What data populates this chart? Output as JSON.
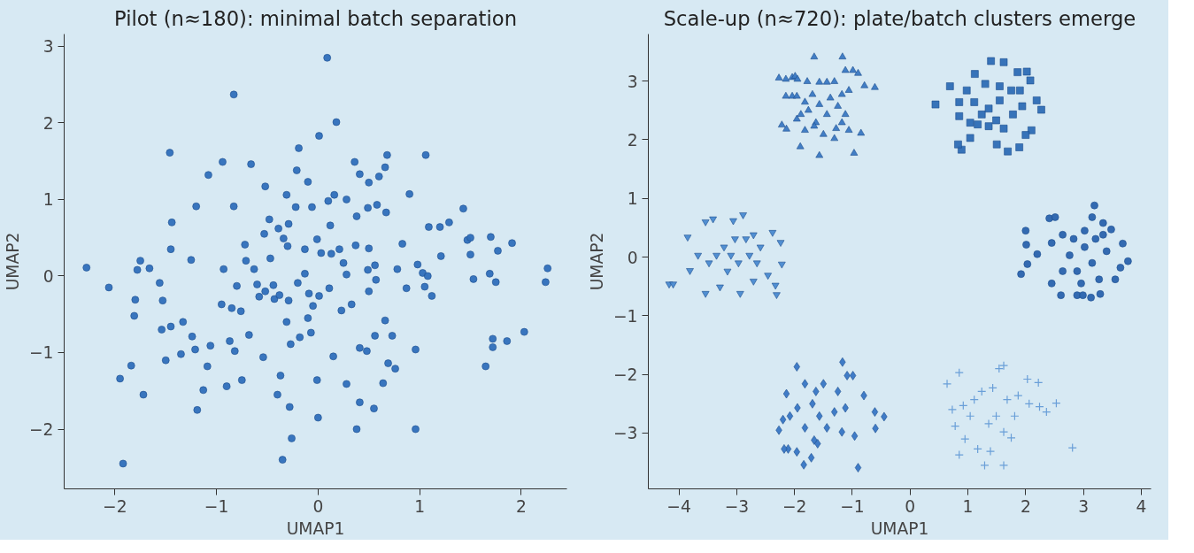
{
  "chart_data": [
    {
      "type": "scatter",
      "title": "Pilot (n≈180): minimal batch separation",
      "xlabel": "UMAP1",
      "ylabel": "UMAP2",
      "xlim": [
        -2.5,
        2.45
      ],
      "ylim": [
        -2.78,
        3.16
      ],
      "xticks": [
        -2,
        -1,
        0,
        1,
        2
      ],
      "yticks": [
        -2,
        -1,
        0,
        1,
        2,
        3
      ],
      "grid": false,
      "marker": "circle",
      "series": [
        {
          "color": "#2f6fba",
          "x": [
            -2.28,
            -2.06,
            -1.95,
            -1.92,
            -1.84,
            -1.81,
            -1.8,
            -1.78,
            -1.75,
            -1.72,
            -1.66,
            -1.56,
            -1.54,
            -1.53,
            -1.5,
            -1.46,
            -1.45,
            -1.45,
            -1.44,
            -1.35,
            -1.33,
            -1.25,
            -1.24,
            -1.21,
            -1.2,
            -1.19,
            -1.13,
            -1.09,
            -1.08,
            -1.06,
            -0.95,
            -0.94,
            -0.93,
            -0.9,
            -0.87,
            -0.85,
            -0.83,
            -0.83,
            -0.82,
            -0.8,
            -0.76,
            -0.75,
            -0.72,
            -0.71,
            -0.68,
            -0.66,
            -0.63,
            -0.6,
            -0.58,
            -0.54,
            -0.53,
            -0.52,
            -0.52,
            -0.48,
            -0.47,
            -0.44,
            -0.43,
            -0.4,
            -0.39,
            -0.38,
            -0.37,
            -0.35,
            -0.34,
            -0.31,
            -0.31,
            -0.3,
            -0.29,
            -0.29,
            -0.28,
            -0.27,
            -0.26,
            -0.22,
            -0.21,
            -0.2,
            -0.19,
            -0.18,
            -0.13,
            -0.13,
            -0.1,
            -0.1,
            -0.09,
            -0.07,
            -0.06,
            -0.05,
            -0.01,
            -0.01,
            0.0,
            0.01,
            0.01,
            0.03,
            0.09,
            0.1,
            0.11,
            0.12,
            0.13,
            0.15,
            0.16,
            0.18,
            0.21,
            0.23,
            0.25,
            0.28,
            0.28,
            0.28,
            0.33,
            0.36,
            0.37,
            0.38,
            0.38,
            0.41,
            0.41,
            0.41,
            0.48,
            0.49,
            0.49,
            0.5,
            0.5,
            0.5,
            0.55,
            0.56,
            0.56,
            0.57,
            0.58,
            0.6,
            0.64,
            0.66,
            0.66,
            0.67,
            0.68,
            0.69,
            0.73,
            0.76,
            0.78,
            0.83,
            0.87,
            0.9,
            0.96,
            0.96,
            0.98,
            1.03,
            1.05,
            1.06,
            1.08,
            1.09,
            1.12,
            1.2,
            1.21,
            1.29,
            1.43,
            1.47,
            1.5,
            1.5,
            1.53,
            1.65,
            1.69,
            1.7,
            1.72,
            1.72,
            1.75,
            1.77,
            1.86,
            1.91,
            2.03,
            2.24,
            2.26
          ],
          "values": [
            0.11,
            -0.15,
            -1.34,
            -2.45,
            -1.17,
            -0.52,
            -0.31,
            0.08,
            0.2,
            -1.55,
            0.1,
            -0.09,
            -0.7,
            -0.32,
            -1.1,
            1.61,
            0.35,
            -0.66,
            0.7,
            -1.02,
            -0.6,
            0.21,
            -0.79,
            -0.96,
            0.91,
            -1.75,
            -1.49,
            -1.18,
            1.32,
            -0.91,
            -0.37,
            1.49,
            0.09,
            -1.44,
            -0.85,
            -0.42,
            0.91,
            2.37,
            -0.98,
            -0.13,
            -0.46,
            -1.36,
            0.41,
            0.2,
            -0.77,
            1.46,
            0.09,
            -0.11,
            -0.27,
            -1.06,
            0.55,
            1.17,
            -0.2,
            0.74,
            0.23,
            -0.12,
            -0.3,
            -1.55,
            0.62,
            -0.25,
            -1.3,
            -2.4,
            0.49,
            1.06,
            -0.6,
            0.39,
            -0.32,
            0.68,
            -1.71,
            -0.89,
            -2.12,
            0.9,
            1.38,
            -0.09,
            1.67,
            -0.8,
            0.35,
            0.03,
            -0.55,
            1.23,
            -0.23,
            -0.74,
            0.9,
            -0.39,
            0.48,
            -1.36,
            -1.85,
            -0.26,
            1.83,
            0.3,
            2.85,
            0.98,
            -0.16,
            0.66,
            0.29,
            -1.05,
            1.06,
            2.01,
            0.35,
            -0.45,
            0.17,
            1.0,
            0.02,
            -1.41,
            -0.37,
            1.49,
            0.4,
            -2.0,
            0.78,
            1.33,
            -1.65,
            -0.94,
            -0.98,
            0.08,
            0.89,
            0.36,
            1.22,
            -0.2,
            -1.73,
            0.14,
            -0.78,
            -0.05,
            0.93,
            1.3,
            -1.4,
            1.42,
            -0.58,
            0.83,
            1.58,
            -1.14,
            -0.78,
            -1.21,
            0.09,
            0.42,
            -0.16,
            1.07,
            -0.96,
            -2.0,
            0.15,
            0.04,
            -0.14,
            1.58,
            0.0,
            0.64,
            -0.26,
            0.64,
            0.26,
            0.7,
            0.88,
            0.47,
            0.28,
            0.5,
            -0.04,
            -1.18,
            0.03,
            0.51,
            -0.82,
            -0.93,
            -0.08,
            0.33,
            -0.85,
            0.43,
            -0.73,
            -0.08,
            0.1
          ]
        }
      ]
    },
    {
      "type": "scatter",
      "title": "Scale-up (n≈720): plate/batch clusters emerge",
      "xlabel": "UMAP1",
      "ylabel": "UMAP2",
      "xlim": [
        -4.53,
        4.17
      ],
      "ylim": [
        -3.95,
        3.8
      ],
      "xticks": [
        -4,
        -3,
        -2,
        -1,
        0,
        1,
        2,
        3,
        4
      ],
      "yticks": [
        -3,
        -2,
        -1,
        0,
        1,
        2,
        3
      ],
      "grid": false,
      "series": [
        {
          "color": "#3a78c2",
          "marker": "triangle",
          "x": [
            -2.27,
            -2.15,
            -2.04,
            -1.99,
            -1.95,
            -1.66,
            -1.17,
            -0.99,
            -0.9,
            -0.79,
            -0.61,
            -2.15,
            -2.04,
            -1.96,
            -2.22,
            -2.14,
            -1.96,
            -1.9,
            -1.57,
            -0.97,
            -0.85,
            -1.78,
            -1.69,
            -1.57,
            -1.44,
            -1.31,
            -1.18,
            -1.06,
            -1.76,
            -1.63,
            -1.44,
            -1.25,
            -1.12,
            -1.06,
            -1.82,
            -1.5,
            -1.31,
            -1.82,
            -1.57,
            -1.38,
            -1.18,
            -1.66,
            -1.89,
            -1.12,
            -1.28
          ],
          "values": [
            3.05,
            3.03,
            3.06,
            3.08,
            3.03,
            3.41,
            3.41,
            3.18,
            3.13,
            2.92,
            2.89,
            2.74,
            2.74,
            2.74,
            2.25,
            2.18,
            2.35,
            1.88,
            1.73,
            1.77,
            2.11,
            2.99,
            2.77,
            2.98,
            2.98,
            2.99,
            2.77,
            2.84,
            2.5,
            2.29,
            2.43,
            2.57,
            2.43,
            2.16,
            2.16,
            2.09,
            2.02,
            2.64,
            2.6,
            2.71,
            2.29,
            2.23,
            2.43,
            3.18,
            2.19
          ]
        },
        {
          "color": "#2e6db5",
          "marker": "square",
          "x": [
            0.44,
            0.69,
            0.89,
            0.83,
            1.12,
            1.4,
            1.62,
            1.86,
            2.02,
            2.08,
            2.19,
            2.27,
            2.1,
            2.0,
            1.89,
            1.69,
            1.5,
            1.04,
            0.85,
            0.85,
            0.98,
            1.3,
            1.55,
            1.75,
            1.94,
            1.11,
            1.24,
            1.36,
            1.49,
            1.62,
            1.17,
            1.78,
            1.55,
            1.36,
            1.04,
            1.9
          ],
          "values": [
            2.6,
            2.91,
            1.83,
            1.92,
            3.12,
            3.34,
            3.32,
            3.15,
            3.16,
            3.01,
            2.67,
            2.51,
            2.16,
            2.08,
            1.87,
            1.8,
            1.92,
            2.03,
            2.4,
            2.64,
            2.84,
            2.95,
            2.91,
            2.84,
            2.57,
            2.64,
            2.43,
            2.53,
            2.33,
            2.19,
            2.26,
            2.43,
            2.67,
            2.23,
            2.29,
            2.84
          ]
        },
        {
          "color": "#4a8ad0",
          "x": [
            -4.17,
            -4.1,
            -3.85,
            -3.81,
            -3.54,
            -3.41,
            -3.06,
            -2.89,
            -2.38,
            -2.24,
            -2.22,
            -2.33,
            -2.31,
            -3.54,
            -3.29,
            -2.94,
            -2.71,
            -2.46,
            -3.67,
            -3.48,
            -3.22,
            -3.1,
            -2.97,
            -2.84,
            -2.71,
            -2.59,
            -2.65,
            -3.16,
            -3.35,
            -3.03,
            -2.78
          ],
          "values": [
            -0.46,
            -0.46,
            0.34,
            -0.23,
            0.6,
            0.65,
            0.62,
            0.72,
            0.42,
            0.25,
            -0.12,
            -0.48,
            -0.64,
            -0.62,
            -0.51,
            -0.62,
            -0.41,
            -0.31,
            0.03,
            -0.1,
            0.17,
            0.03,
            -0.1,
            0.31,
            0.38,
            0.17,
            -0.1,
            -0.24,
            0.03,
            0.31,
            0.03
          ]
        },
        {
          "color": "#2a63ad",
          "marker": "circle",
          "x": [
            3.19,
            2.0,
            2.01,
            2.03,
            1.92,
            2.2,
            2.41,
            2.51,
            2.61,
            2.89,
            2.99,
            3.13,
            3.29,
            3.55,
            3.64,
            3.68,
            3.77,
            3.48,
            3.34,
            3.15,
            2.45,
            2.45,
            2.64,
            2.76,
            2.89,
            3.02,
            3.15,
            3.27,
            3.4,
            2.64,
            2.83,
            3.02,
            3.21,
            2.96,
            3.34
          ],
          "values": [
            0.88,
            0.45,
            0.21,
            -0.12,
            -0.29,
            0.05,
            0.66,
            0.68,
            -0.65,
            -0.65,
            -0.65,
            -0.69,
            -0.63,
            -0.38,
            -0.18,
            0.23,
            -0.07,
            0.47,
            0.58,
            0.68,
            0.24,
            -0.45,
            0.38,
            0.03,
            -0.24,
            0.17,
            -0.1,
            -0.38,
            0.1,
            -0.24,
            0.31,
            0.45,
            0.31,
            -0.45,
            0.38
          ]
        },
        {
          "color": "#3876c4",
          "marker": "diamond",
          "x": [
            -1.96,
            -1.17,
            -1.09,
            -0.99,
            -0.8,
            -0.61,
            -0.45,
            -0.6,
            -0.9,
            -0.96,
            -1.18,
            -1.66,
            -1.6,
            -1.71,
            -1.84,
            -1.96,
            -2.11,
            -2.18,
            -2.27,
            -2.2,
            -2.14,
            -1.82,
            -1.5,
            -1.25,
            -1.69,
            -1.95,
            -1.57,
            -1.31,
            -1.12,
            -1.82,
            -1.44,
            -2.08,
            -1.63
          ],
          "values": [
            -1.87,
            -1.79,
            -2.02,
            -2.02,
            -2.36,
            -2.64,
            -2.72,
            -2.92,
            -3.59,
            -3.05,
            -2.98,
            -3.12,
            -3.18,
            -3.42,
            -3.54,
            -3.32,
            -3.27,
            -3.27,
            -2.95,
            -2.77,
            -2.33,
            -2.16,
            -2.16,
            -2.29,
            -2.5,
            -2.57,
            -2.71,
            -2.64,
            -2.57,
            -2.91,
            -2.91,
            -2.71,
            -2.29
          ]
        },
        {
          "color": "#6a9fd8",
          "marker": "cross",
          "x": [
            0.64,
            0.85,
            1.54,
            1.62,
            2.03,
            2.22,
            2.53,
            2.36,
            2.24,
            2.81,
            1.62,
            1.29,
            0.85,
            0.95,
            1.17,
            1.39,
            0.73,
            0.78,
            1.04,
            1.24,
            1.43,
            1.68,
            1.81,
            1.49,
            1.62,
            1.36,
            1.11,
            0.92,
            1.87,
            2.06,
            1.75
          ],
          "values": [
            -2.16,
            -1.97,
            -1.9,
            -1.85,
            -2.08,
            -2.14,
            -2.49,
            -2.64,
            -2.55,
            -3.25,
            -3.55,
            -3.55,
            -3.37,
            -3.1,
            -3.27,
            -3.31,
            -2.6,
            -2.88,
            -2.71,
            -2.29,
            -2.23,
            -2.43,
            -2.71,
            -2.71,
            -2.98,
            -2.84,
            -2.43,
            -2.53,
            -2.36,
            -2.5,
            -3.08
          ]
        }
      ]
    }
  ]
}
